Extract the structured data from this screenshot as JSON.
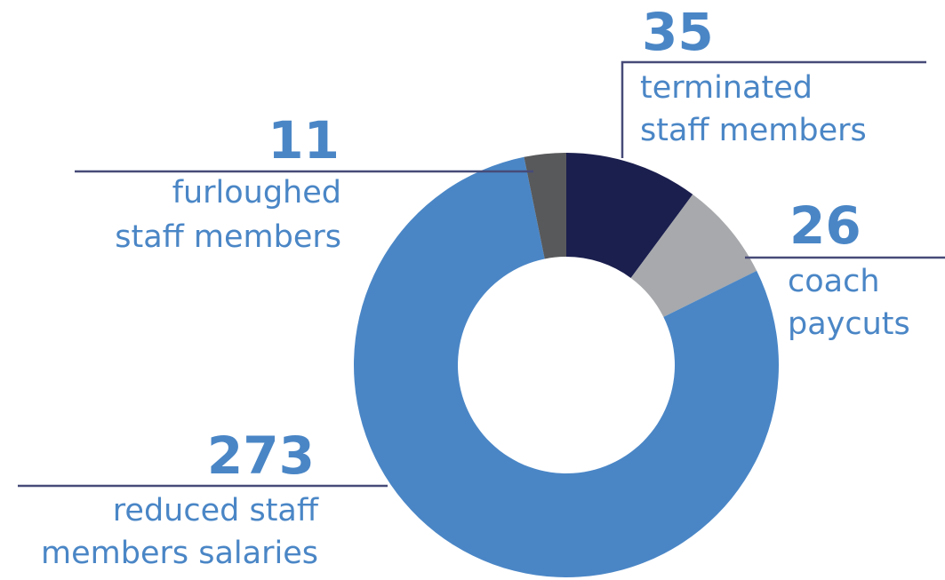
{
  "chart_data": {
    "type": "donut",
    "categories": [
      [
        "terminated",
        "staff members"
      ],
      [
        "coach",
        "paycuts"
      ],
      [
        "reduced staff",
        "members salaries"
      ],
      [
        "furloughed",
        "staff members"
      ]
    ],
    "values": [
      35,
      26,
      273,
      11
    ],
    "colors": [
      "#1b1f4e",
      "#a7a9ac",
      "#4a86c6",
      "#58595b"
    ]
  }
}
